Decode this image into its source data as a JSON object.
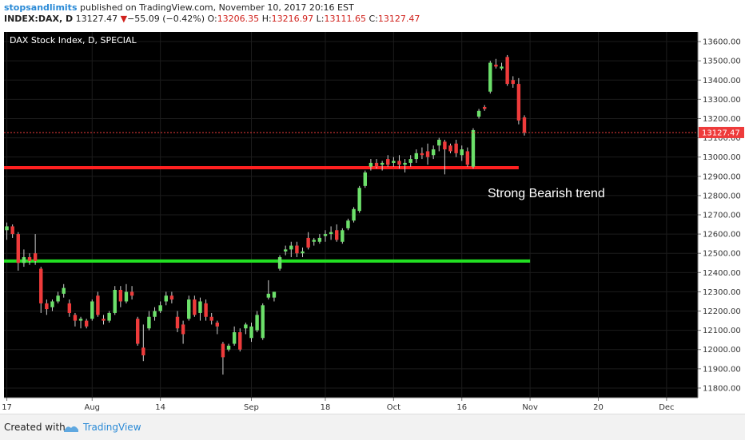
{
  "header": {
    "username": "stopsandlimits",
    "published_text": "published on TradingView.com, November 10, 2017 20:16 EST",
    "symbol": "INDEX:DAX, D",
    "last": "13127.47",
    "change_arrow": "▼",
    "change": "−55.09 (−0.42%)",
    "o_label": "O:",
    "o_value": "13206.35",
    "h_label": "H:",
    "h_value": "13216.97",
    "l_label": "L:",
    "l_value": "13111.65",
    "c_label": "C:",
    "c_value": "13127.47"
  },
  "footer": {
    "created_with": "Created with",
    "brand": "TradingView"
  },
  "colors": {
    "background": "#000000",
    "up": "#6ce06a",
    "down": "#ee3b3b",
    "resistance": "#ff2020",
    "support": "#22e022",
    "price_tag": "#ee3b3b"
  },
  "chart_data": {
    "type": "candlestick",
    "title": "DAX Stock Index, D, SPECIAL",
    "annotation": "Strong Bearish trend",
    "ylim": [
      11750,
      13650
    ],
    "y_ticks": [
      11800,
      11900,
      12000,
      12100,
      12200,
      12300,
      12400,
      12500,
      12600,
      12700,
      12800,
      12900,
      13000,
      13100,
      13200,
      13300,
      13400,
      13500,
      13600
    ],
    "y_tick_labels": [
      "11800.00",
      "11900.00",
      "12000.00",
      "12100.00",
      "12200.00",
      "12300.00",
      "12400.00",
      "12500.00",
      "12600.00",
      "12700.00",
      "12800.00",
      "12900.00",
      "13000.00",
      "13100.00",
      "13200.00",
      "13300.00",
      "13400.00",
      "13500.00",
      "13600.00"
    ],
    "x_tick_labels": [
      "17",
      "Aug",
      "14",
      "Sep",
      "18",
      "Oct",
      "16",
      "Nov",
      "20",
      "Dec"
    ],
    "x_tick_index": [
      0,
      15,
      27,
      43,
      56,
      68,
      80,
      92,
      104,
      116
    ],
    "bars_total": 122,
    "last_price": 13127.47,
    "last_price_label": "13127.47",
    "levels": [
      {
        "name": "resistance",
        "value": 12945,
        "from": 0,
        "to": 90
      },
      {
        "name": "support",
        "value": 12460,
        "from": 0,
        "to": 92
      }
    ],
    "candles": [
      {
        "o": 12620,
        "h": 12660,
        "l": 12570,
        "c": 12640
      },
      {
        "o": 12640,
        "h": 12650,
        "l": 12580,
        "c": 12600
      },
      {
        "o": 12600,
        "h": 12610,
        "l": 12410,
        "c": 12450
      },
      {
        "o": 12450,
        "h": 12520,
        "l": 12430,
        "c": 12480
      },
      {
        "o": 12480,
        "h": 12500,
        "l": 12440,
        "c": 12460
      },
      {
        "o": 12500,
        "h": 12600,
        "l": 12440,
        "c": 12460
      },
      {
        "o": 12420,
        "h": 12430,
        "l": 12190,
        "c": 12240
      },
      {
        "o": 12240,
        "h": 12260,
        "l": 12180,
        "c": 12210
      },
      {
        "o": 12220,
        "h": 12260,
        "l": 12200,
        "c": 12250
      },
      {
        "o": 12250,
        "h": 12300,
        "l": 12240,
        "c": 12280
      },
      {
        "o": 12290,
        "h": 12340,
        "l": 12270,
        "c": 12320
      },
      {
        "o": 12240,
        "h": 12260,
        "l": 12170,
        "c": 12190
      },
      {
        "o": 12180,
        "h": 12190,
        "l": 12120,
        "c": 12150
      },
      {
        "o": 12150,
        "h": 12170,
        "l": 12110,
        "c": 12160
      },
      {
        "o": 12150,
        "h": 12160,
        "l": 12110,
        "c": 12120
      },
      {
        "o": 12160,
        "h": 12260,
        "l": 12150,
        "c": 12250
      },
      {
        "o": 12280,
        "h": 12300,
        "l": 12170,
        "c": 12180
      },
      {
        "o": 12160,
        "h": 12180,
        "l": 12130,
        "c": 12150
      },
      {
        "o": 12150,
        "h": 12200,
        "l": 12140,
        "c": 12190
      },
      {
        "o": 12190,
        "h": 12330,
        "l": 12180,
        "c": 12310
      },
      {
        "o": 12310,
        "h": 12330,
        "l": 12220,
        "c": 12250
      },
      {
        "o": 12250,
        "h": 12340,
        "l": 12240,
        "c": 12300
      },
      {
        "o": 12300,
        "h": 12330,
        "l": 12260,
        "c": 12280
      },
      {
        "o": 12160,
        "h": 12170,
        "l": 12020,
        "c": 12030
      },
      {
        "o": 12010,
        "h": 12130,
        "l": 11940,
        "c": 11970
      },
      {
        "o": 12110,
        "h": 12200,
        "l": 12100,
        "c": 12170
      },
      {
        "o": 12170,
        "h": 12220,
        "l": 12150,
        "c": 12200
      },
      {
        "o": 12200,
        "h": 12250,
        "l": 12190,
        "c": 12230
      },
      {
        "o": 12250,
        "h": 12300,
        "l": 12230,
        "c": 12280
      },
      {
        "o": 12280,
        "h": 12300,
        "l": 12240,
        "c": 12260
      },
      {
        "o": 12170,
        "h": 12200,
        "l": 12090,
        "c": 12110
      },
      {
        "o": 12130,
        "h": 12150,
        "l": 12030,
        "c": 12080
      },
      {
        "o": 12160,
        "h": 12280,
        "l": 12150,
        "c": 12260
      },
      {
        "o": 12260,
        "h": 12280,
        "l": 12170,
        "c": 12180
      },
      {
        "o": 12190,
        "h": 12270,
        "l": 12150,
        "c": 12250
      },
      {
        "o": 12240,
        "h": 12260,
        "l": 12150,
        "c": 12170
      },
      {
        "o": 12170,
        "h": 12190,
        "l": 12130,
        "c": 12150
      },
      {
        "o": 12140,
        "h": 12150,
        "l": 12080,
        "c": 12120
      },
      {
        "o": 12030,
        "h": 12040,
        "l": 11870,
        "c": 11960
      },
      {
        "o": 12000,
        "h": 12030,
        "l": 11990,
        "c": 12020
      },
      {
        "o": 12030,
        "h": 12120,
        "l": 12020,
        "c": 12090
      },
      {
        "o": 12090,
        "h": 12110,
        "l": 11990,
        "c": 12000
      },
      {
        "o": 12110,
        "h": 12140,
        "l": 12080,
        "c": 12130
      },
      {
        "o": 12060,
        "h": 12140,
        "l": 12040,
        "c": 12120
      },
      {
        "o": 12100,
        "h": 12200,
        "l": 12090,
        "c": 12180
      },
      {
        "o": 12060,
        "h": 12240,
        "l": 12050,
        "c": 12230
      },
      {
        "o": 12270,
        "h": 12360,
        "l": 12260,
        "c": 12290
      },
      {
        "o": 12270,
        "h": 12300,
        "l": 12250,
        "c": 12300
      },
      {
        "o": 12420,
        "h": 12490,
        "l": 12410,
        "c": 12480
      },
      {
        "o": 12510,
        "h": 12540,
        "l": 12490,
        "c": 12520
      },
      {
        "o": 12520,
        "h": 12560,
        "l": 12480,
        "c": 12540
      },
      {
        "o": 12540,
        "h": 12560,
        "l": 12480,
        "c": 12500
      },
      {
        "o": 12500,
        "h": 12530,
        "l": 12480,
        "c": 12510
      },
      {
        "o": 12580,
        "h": 12610,
        "l": 12520,
        "c": 12530
      },
      {
        "o": 12560,
        "h": 12580,
        "l": 12540,
        "c": 12570
      },
      {
        "o": 12560,
        "h": 12600,
        "l": 12550,
        "c": 12580
      },
      {
        "o": 12590,
        "h": 12620,
        "l": 12560,
        "c": 12600
      },
      {
        "o": 12600,
        "h": 12640,
        "l": 12570,
        "c": 12610
      },
      {
        "o": 12620,
        "h": 12650,
        "l": 12560,
        "c": 12570
      },
      {
        "o": 12560,
        "h": 12630,
        "l": 12550,
        "c": 12620
      },
      {
        "o": 12630,
        "h": 12680,
        "l": 12620,
        "c": 12670
      },
      {
        "o": 12670,
        "h": 12740,
        "l": 12660,
        "c": 12730
      },
      {
        "o": 12720,
        "h": 12850,
        "l": 12710,
        "c": 12840
      },
      {
        "o": 12850,
        "h": 12930,
        "l": 12840,
        "c": 12920
      },
      {
        "o": 12950,
        "h": 12990,
        "l": 12930,
        "c": 12970
      },
      {
        "o": 12970,
        "h": 12990,
        "l": 12940,
        "c": 12950
      },
      {
        "o": 12960,
        "h": 12980,
        "l": 12930,
        "c": 12970
      },
      {
        "o": 12990,
        "h": 13010,
        "l": 12950,
        "c": 12960
      },
      {
        "o": 12970,
        "h": 13000,
        "l": 12950,
        "c": 12980
      },
      {
        "o": 12980,
        "h": 13010,
        "l": 12940,
        "c": 12960
      },
      {
        "o": 12960,
        "h": 12990,
        "l": 12920,
        "c": 12970
      },
      {
        "o": 12970,
        "h": 13010,
        "l": 12950,
        "c": 12990
      },
      {
        "o": 12990,
        "h": 13040,
        "l": 12970,
        "c": 13020
      },
      {
        "o": 13020,
        "h": 13050,
        "l": 12990,
        "c": 13010
      },
      {
        "o": 13030,
        "h": 13070,
        "l": 12960,
        "c": 13000
      },
      {
        "o": 13010,
        "h": 13060,
        "l": 12990,
        "c": 13040
      },
      {
        "o": 13060,
        "h": 13100,
        "l": 13030,
        "c": 13090
      },
      {
        "o": 13080,
        "h": 13090,
        "l": 12910,
        "c": 13040
      },
      {
        "o": 13060,
        "h": 13070,
        "l": 13020,
        "c": 13030
      },
      {
        "o": 13070,
        "h": 13090,
        "l": 13000,
        "c": 13020
      },
      {
        "o": 13010,
        "h": 13060,
        "l": 12980,
        "c": 13040
      },
      {
        "o": 13030,
        "h": 13050,
        "l": 12950,
        "c": 12960
      },
      {
        "o": 12950,
        "h": 13150,
        "l": 12940,
        "c": 13140
      },
      {
        "o": 13210,
        "h": 13250,
        "l": 13200,
        "c": 13240
      },
      {
        "o": 13260,
        "h": 13270,
        "l": 13240,
        "c": 13250
      },
      {
        "o": 13340,
        "h": 13500,
        "l": 13330,
        "c": 13490
      },
      {
        "o": 13480,
        "h": 13510,
        "l": 13460,
        "c": 13470
      },
      {
        "o": 13460,
        "h": 13490,
        "l": 13450,
        "c": 13470
      },
      {
        "o": 13520,
        "h": 13530,
        "l": 13370,
        "c": 13380
      },
      {
        "o": 13400,
        "h": 13420,
        "l": 13360,
        "c": 13380
      },
      {
        "o": 13380,
        "h": 13410,
        "l": 13170,
        "c": 13190
      },
      {
        "o": 13206.35,
        "h": 13216.97,
        "l": 13111.65,
        "c": 13127.47
      }
    ]
  }
}
